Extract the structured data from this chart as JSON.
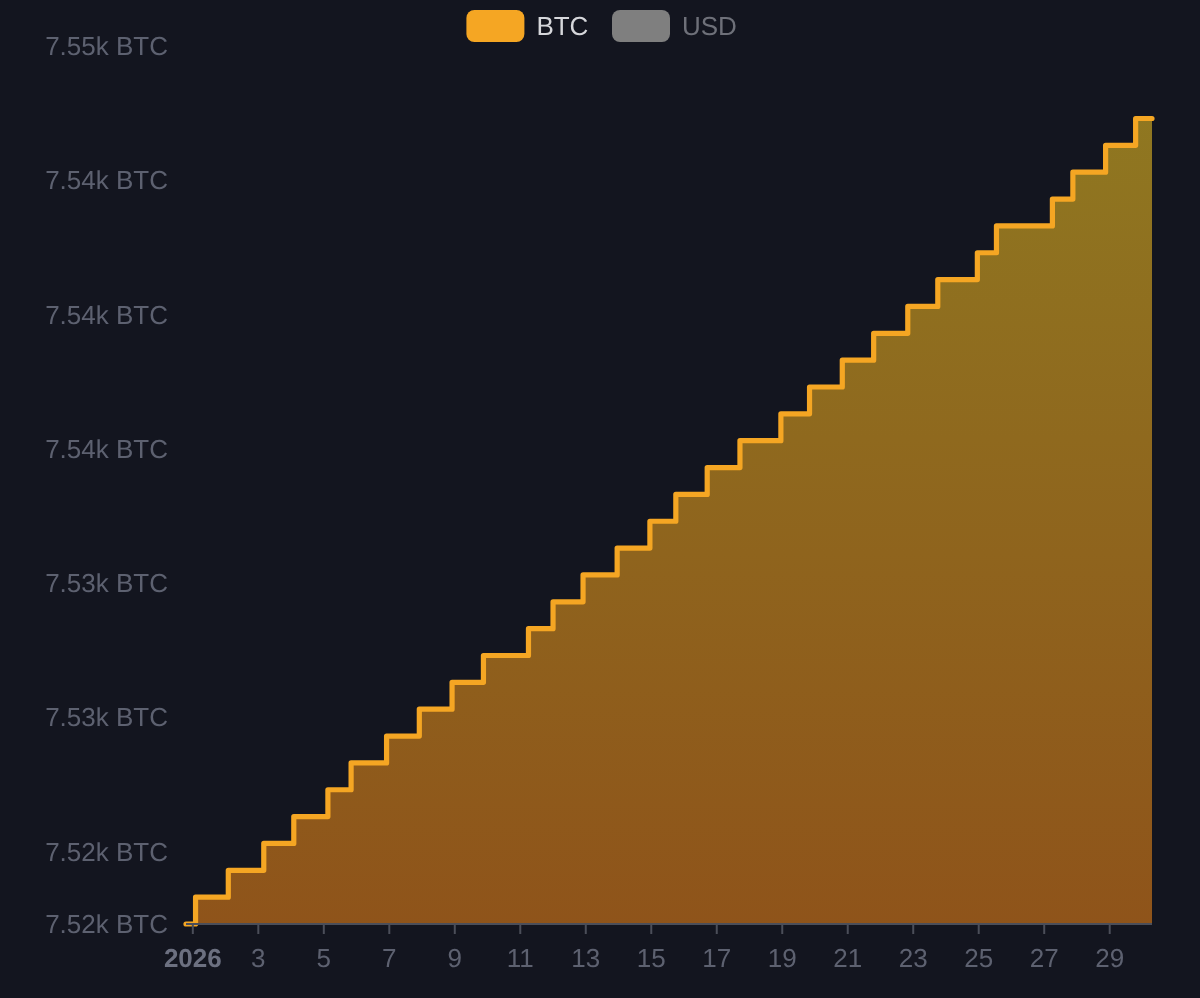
{
  "chart_data": {
    "type": "area",
    "x": [
      "2025-12-31T19:00",
      "2026-01-01T02:00",
      "2026-01-01T02:00",
      "2026-01-02T02:00",
      "2026-01-02T02:00",
      "2026-01-03T04:00",
      "2026-01-03T04:00",
      "2026-01-04T02:00",
      "2026-01-04T02:00",
      "2026-01-05T03:00",
      "2026-01-05T03:00",
      "2026-01-05T20:00",
      "2026-01-05T20:00",
      "2026-01-06T22:00",
      "2026-01-06T22:00",
      "2026-01-07T22:00",
      "2026-01-07T22:00",
      "2026-01-08T22:00",
      "2026-01-08T22:00",
      "2026-01-09T21:00",
      "2026-01-09T21:00",
      "2026-01-11T06:00",
      "2026-01-11T06:00",
      "2026-01-12T00:00",
      "2026-01-12T00:00",
      "2026-01-12T22:00",
      "2026-01-12T22:00",
      "2026-01-13T23:00",
      "2026-01-13T23:00",
      "2026-01-14T23:00",
      "2026-01-14T23:00",
      "2026-01-15T18:00",
      "2026-01-15T18:00",
      "2026-01-16T17:00",
      "2026-01-16T17:00",
      "2026-01-17T17:00",
      "2026-01-17T17:00",
      "2026-01-18T23:00",
      "2026-01-18T23:00",
      "2026-01-19T20:00",
      "2026-01-19T20:00",
      "2026-01-20T20:00",
      "2026-01-20T20:00",
      "2026-01-21T19:00",
      "2026-01-21T19:00",
      "2026-01-22T20:00",
      "2026-01-22T20:00",
      "2026-01-23T18:00",
      "2026-01-23T18:00",
      "2026-01-24T23:00",
      "2026-01-24T23:00",
      "2026-01-25T13:00",
      "2026-01-25T13:00",
      "2026-01-27T06:00",
      "2026-01-27T06:00",
      "2026-01-27T21:00",
      "2026-01-27T21:00",
      "2026-01-28T21:00",
      "2026-01-28T21:00",
      "2026-01-29T19:00",
      "2026-01-29T19:00",
      "2026-01-30T07:00"
    ],
    "series": [
      {
        "name": "BTC",
        "color": "#f5a623",
        "values": [
          7517.3,
          7517.3,
          7518.3,
          7518.3,
          7519.3,
          7519.3,
          7520.3,
          7520.3,
          7521.3,
          7521.3,
          7522.3,
          7522.3,
          7523.3,
          7523.3,
          7524.3,
          7524.3,
          7525.3,
          7525.3,
          7526.3,
          7526.3,
          7527.3,
          7527.3,
          7528.3,
          7528.3,
          7529.3,
          7529.3,
          7530.3,
          7530.3,
          7531.3,
          7531.3,
          7532.3,
          7532.3,
          7533.3,
          7533.3,
          7534.3,
          7534.3,
          7535.3,
          7535.3,
          7536.3,
          7536.3,
          7537.3,
          7537.3,
          7538.3,
          7538.3,
          7539.3,
          7539.3,
          7540.3,
          7540.3,
          7541.3,
          7541.3,
          7542.3,
          7542.3,
          7543.3,
          7543.3,
          7544.3,
          7544.3,
          7545.3,
          7545.3,
          7546.3,
          7546.3,
          7547.3,
          7547.3
        ]
      },
      {
        "name": "USD",
        "color": "#7f7f7f",
        "values": [
          null,
          null,
          null,
          null,
          null,
          null,
          null,
          null,
          null,
          null,
          null,
          null,
          null,
          null,
          null,
          null,
          null,
          null,
          null,
          null,
          null,
          null,
          null,
          null,
          null,
          null,
          null,
          null,
          null,
          null,
          null,
          null,
          null,
          null,
          null,
          null,
          null,
          null,
          null,
          null,
          null,
          null,
          null,
          null,
          null,
          null,
          null,
          null,
          null,
          null,
          null,
          null,
          null,
          null,
          null,
          null,
          null,
          null,
          null,
          null,
          null,
          null
        ]
      }
    ],
    "xlim": [
      "2025-12-31T19:00",
      "2026-01-30T07:00"
    ],
    "ylim": [
      7517.3,
      7550
    ],
    "xticks": [
      {
        "value": "2026-01-01",
        "label": "2026"
      },
      {
        "value": "2026-01-03",
        "label": "3"
      },
      {
        "value": "2026-01-05",
        "label": "5"
      },
      {
        "value": "2026-01-07",
        "label": "7"
      },
      {
        "value": "2026-01-09",
        "label": "9"
      },
      {
        "value": "2026-01-11",
        "label": "11"
      },
      {
        "value": "2026-01-13",
        "label": "13"
      },
      {
        "value": "2026-01-15",
        "label": "15"
      },
      {
        "value": "2026-01-17",
        "label": "17"
      },
      {
        "value": "2026-01-19",
        "label": "19"
      },
      {
        "value": "2026-01-21",
        "label": "21"
      },
      {
        "value": "2026-01-23",
        "label": "23"
      },
      {
        "value": "2026-01-25",
        "label": "25"
      },
      {
        "value": "2026-01-27",
        "label": "27"
      },
      {
        "value": "2026-01-29",
        "label": "29"
      }
    ],
    "yticks": [
      {
        "value": 7517.3,
        "label": "7.52k BTC"
      },
      {
        "value": 7520,
        "label": "7.52k BTC"
      },
      {
        "value": 7525,
        "label": "7.53k BTC"
      },
      {
        "value": 7530,
        "label": "7.53k BTC"
      },
      {
        "value": 7535,
        "label": "7.54k BTC"
      },
      {
        "value": 7540,
        "label": "7.54k BTC"
      },
      {
        "value": 7545,
        "label": "7.54k BTC"
      },
      {
        "value": 7550,
        "label": "7.55k BTC"
      }
    ],
    "legend": "top"
  }
}
